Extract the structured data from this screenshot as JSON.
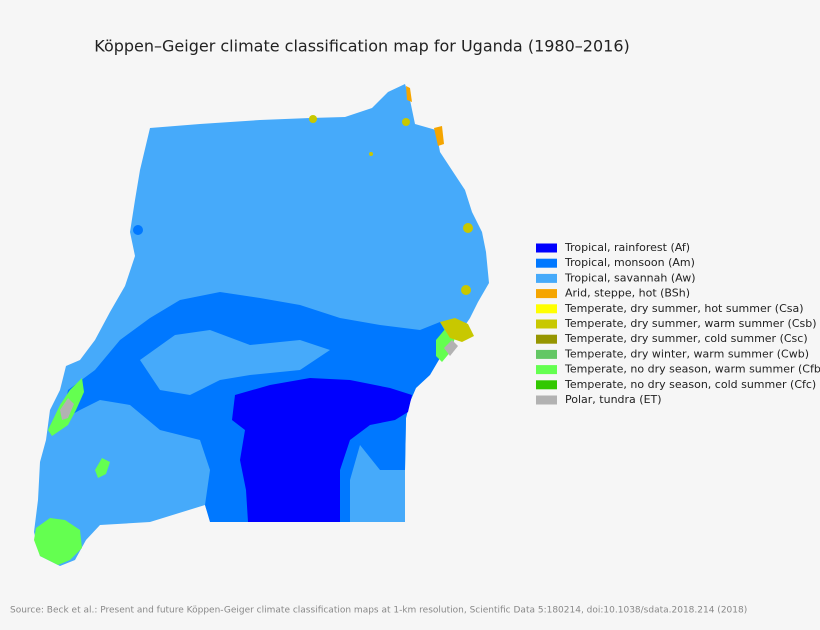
{
  "title": "Köppen–Geiger climate classification map for Uganda (1980–2016)",
  "legend": [
    {
      "label": "Tropical, rainforest (Af)",
      "color": "#0000fe"
    },
    {
      "label": "Tropical, monsoon (Am)",
      "color": "#0078ff"
    },
    {
      "label": "Tropical, savannah (Aw)",
      "color": "#46aafa"
    },
    {
      "label": "Arid, steppe, hot (BSh)",
      "color": "#f5a500"
    },
    {
      "label": "Temperate, dry summer, hot summer (Csa)",
      "color": "#ffff00"
    },
    {
      "label": "Temperate, dry summer, warm summer (Csb)",
      "color": "#c8c800"
    },
    {
      "label": "Temperate, dry summer, cold summer (Csc)",
      "color": "#969600"
    },
    {
      "label": "Temperate, dry winter, warm summer (Cwb)",
      "color": "#63c764"
    },
    {
      "label": "Temperate, no dry season, warm summer (Cfb)",
      "color": "#64ff50"
    },
    {
      "label": "Temperate, no dry season, cold summer (Cfc)",
      "color": "#32c800"
    },
    {
      "label": "Polar, tundra (ET)",
      "color": "#b2b2b2"
    }
  ],
  "source": "Source: Beck et al.: Present and future Köppen-Geiger climate classification maps at 1-km resolution, Scientific Data 5:180214, doi:10.1038/sdata.2018.214 (2018)"
}
